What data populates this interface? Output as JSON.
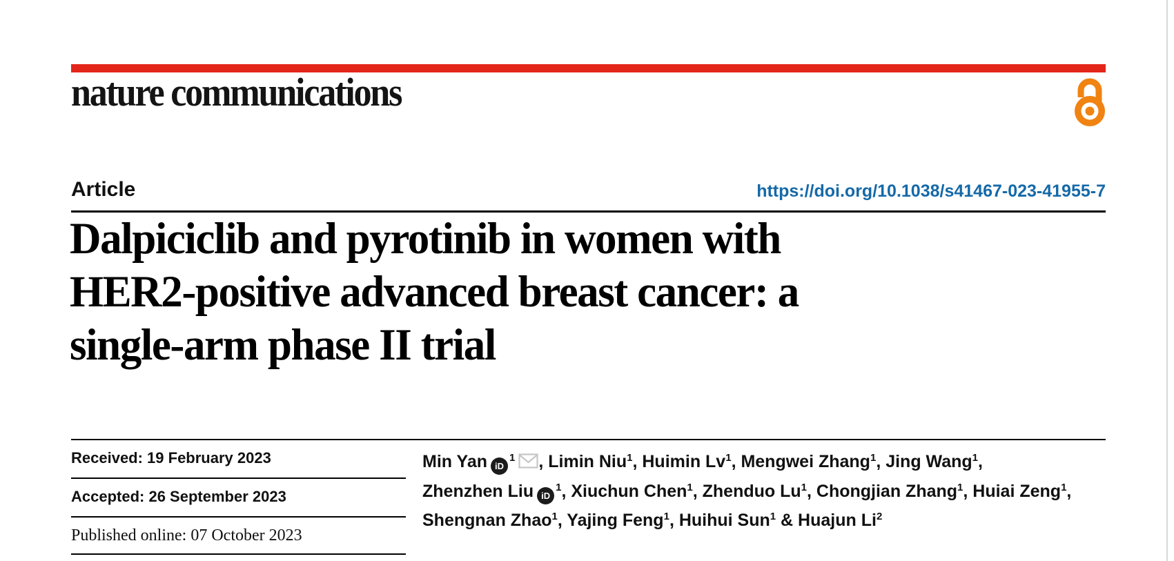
{
  "colors": {
    "brand-red": "#e3261a",
    "link-blue": "#1569a8",
    "oa-orange": "#f08312",
    "envelope-gray": "#c6c6c6"
  },
  "header": {
    "journal_logo": "nature communications",
    "open_access_icon": "open-access-padlock-icon"
  },
  "article": {
    "label": "Article",
    "doi": "https://doi.org/10.1038/s41467-023-41955-7",
    "title": "Dalpiciclib and pyrotinib in women with HER2-positive advanced breast cancer: a single-arm phase II trial",
    "title_lines": [
      "Dalpiciclib and pyrotinib in women with",
      "HER2-positive advanced breast cancer: a",
      "single-arm phase II trial"
    ]
  },
  "dates": {
    "received": "Received: 19 February 2023",
    "accepted": "Accepted: 26 September 2023",
    "published": "Published online: 07 October 2023"
  },
  "authors": {
    "orcid_badge_text": "iD",
    "lines": [
      [
        {
          "t": "text",
          "v": "Min Yan"
        },
        {
          "t": "orcid"
        },
        {
          "t": "sup",
          "v": "1"
        },
        {
          "t": "mail"
        },
        {
          "t": "text",
          "v": ", Limin Niu"
        },
        {
          "t": "sup",
          "v": "1"
        },
        {
          "t": "text",
          "v": ", Huimin Lv"
        },
        {
          "t": "sup",
          "v": "1"
        },
        {
          "t": "text",
          "v": ", Mengwei Zhang"
        },
        {
          "t": "sup",
          "v": "1"
        },
        {
          "t": "text",
          "v": ", Jing Wang"
        },
        {
          "t": "sup",
          "v": "1"
        },
        {
          "t": "text",
          "v": ","
        }
      ],
      [
        {
          "t": "text",
          "v": "Zhenzhen Liu"
        },
        {
          "t": "orcid"
        },
        {
          "t": "sup",
          "v": "1"
        },
        {
          "t": "text",
          "v": ", Xiuchun Chen"
        },
        {
          "t": "sup",
          "v": "1"
        },
        {
          "t": "text",
          "v": ", Zhenduo Lu"
        },
        {
          "t": "sup",
          "v": "1"
        },
        {
          "t": "text",
          "v": ", Chongjian Zhang"
        },
        {
          "t": "sup",
          "v": "1"
        },
        {
          "t": "text",
          "v": ", Huiai Zeng"
        },
        {
          "t": "sup",
          "v": "1"
        },
        {
          "t": "text",
          "v": ","
        }
      ],
      [
        {
          "t": "text",
          "v": "Shengnan Zhao"
        },
        {
          "t": "sup",
          "v": "1"
        },
        {
          "t": "text",
          "v": ", Yajing Feng"
        },
        {
          "t": "sup",
          "v": "1"
        },
        {
          "t": "text",
          "v": ", Huihui Sun"
        },
        {
          "t": "sup",
          "v": "1"
        },
        {
          "t": "text",
          "v": " & Huajun Li"
        },
        {
          "t": "sup",
          "v": "2"
        }
      ]
    ]
  }
}
